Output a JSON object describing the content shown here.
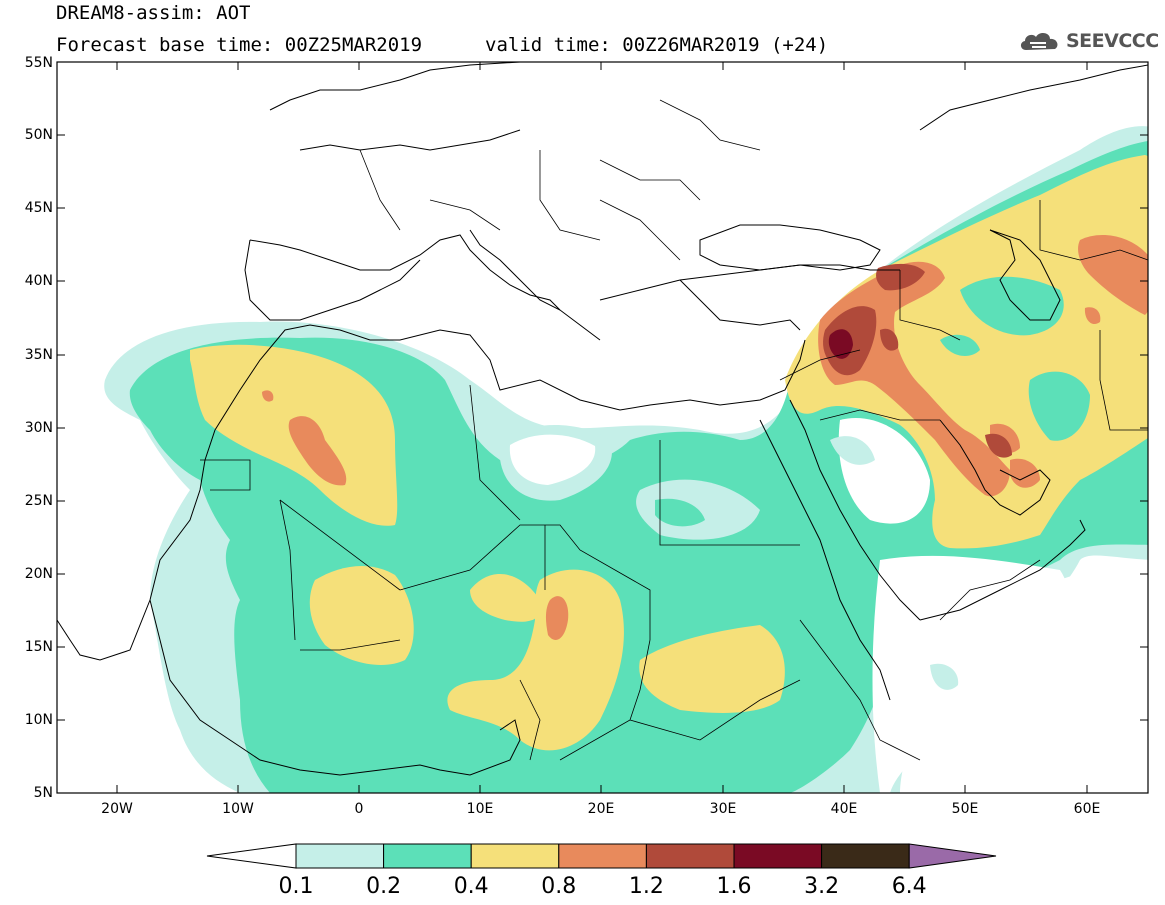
{
  "header": {
    "title": "DREAM8-assim: AOT",
    "base_time": "Forecast base time: 00Z25MAR2019",
    "valid_time": "valid time: 00Z26MAR2019 (+24)"
  },
  "logo": {
    "text": "SEEVCCC",
    "icon": "cloud-icon"
  },
  "map": {
    "projection": "lat-lon",
    "lon_range": [
      -25,
      65
    ],
    "lat_range": [
      5,
      55
    ],
    "lat_ticks": [
      "5N",
      "10N",
      "15N",
      "20N",
      "25N",
      "30N",
      "35N",
      "40N",
      "45N",
      "50N",
      "55N"
    ],
    "lon_ticks": [
      "20W",
      "10W",
      "0",
      "10E",
      "20E",
      "30E",
      "40E",
      "50E",
      "60E"
    ],
    "variable": "Aerosol optical thickness (dust)"
  },
  "colorbar": {
    "levels": [
      "0.1",
      "0.2",
      "0.4",
      "0.8",
      "1.2",
      "1.6",
      "3.2",
      "6.4"
    ],
    "colors": [
      "#ffffff",
      "#c5efe8",
      "#5ce0b8",
      "#f5e07a",
      "#e88a5c",
      "#b04a3a",
      "#7a0a24",
      "#3a2a18",
      "#9a6aa8"
    ]
  }
}
